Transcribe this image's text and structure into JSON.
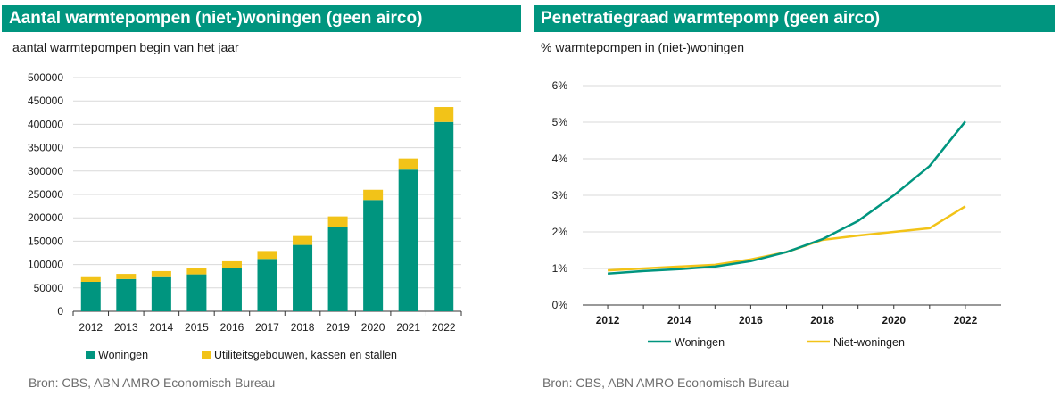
{
  "left": {
    "title": "Aantal warmtepompen (niet-)woningen (geen airco)",
    "subtitle": "aantal warmtepompen begin van het jaar",
    "source": "Bron: CBS, ABN AMRO Economisch Bureau"
  },
  "right": {
    "title": "Penetratiegraad warmtepomp (geen airco)",
    "subtitle": "% warmtepompen in (niet-)woningen",
    "source": "Bron: CBS, ABN AMRO Economisch Bureau"
  },
  "colors": {
    "banner": "#00957f",
    "teal": "#00957f",
    "yellow": "#f2c318",
    "grid": "#d9d9d9"
  },
  "chart_data": [
    {
      "type": "bar",
      "stacked": true,
      "categories": [
        "2012",
        "2013",
        "2014",
        "2015",
        "2016",
        "2017",
        "2018",
        "2019",
        "2020",
        "2021",
        "2022"
      ],
      "series": [
        {
          "name": "Woningen",
          "color": "#00957f",
          "values": [
            63000,
            69000,
            73000,
            79000,
            92000,
            112000,
            142000,
            181000,
            238000,
            303000,
            405000
          ]
        },
        {
          "name": "Utiliteitsgebouwen, kassen en stallen",
          "color": "#f2c318",
          "values": [
            10000,
            11000,
            13000,
            14000,
            15000,
            17000,
            19000,
            22000,
            22000,
            24000,
            32000
          ]
        }
      ],
      "ylim": [
        0,
        500000
      ],
      "yticks": [
        "0",
        "50000",
        "100000",
        "150000",
        "200000",
        "250000",
        "300000",
        "350000",
        "400000",
        "450000",
        "500000"
      ],
      "grid": true,
      "legend": "bottom"
    },
    {
      "type": "line",
      "x": [
        2012,
        2013,
        2014,
        2015,
        2016,
        2017,
        2018,
        2019,
        2020,
        2021,
        2022
      ],
      "xticks": [
        "2012",
        "2014",
        "2016",
        "2018",
        "2020",
        "2022"
      ],
      "series": [
        {
          "name": "Woningen",
          "color": "#00957f",
          "values": [
            0.86,
            0.93,
            0.98,
            1.05,
            1.2,
            1.45,
            1.8,
            2.3,
            3.0,
            3.8,
            5.02
          ]
        },
        {
          "name": "Niet-woningen",
          "color": "#f2c318",
          "values": [
            0.95,
            1.0,
            1.05,
            1.1,
            1.25,
            1.45,
            1.78,
            1.9,
            2.0,
            2.1,
            2.7
          ]
        }
      ],
      "ylim": [
        0,
        6
      ],
      "yticks": [
        "0%",
        "1%",
        "2%",
        "3%",
        "4%",
        "5%",
        "6%"
      ],
      "grid": true,
      "legend": "bottom"
    }
  ]
}
